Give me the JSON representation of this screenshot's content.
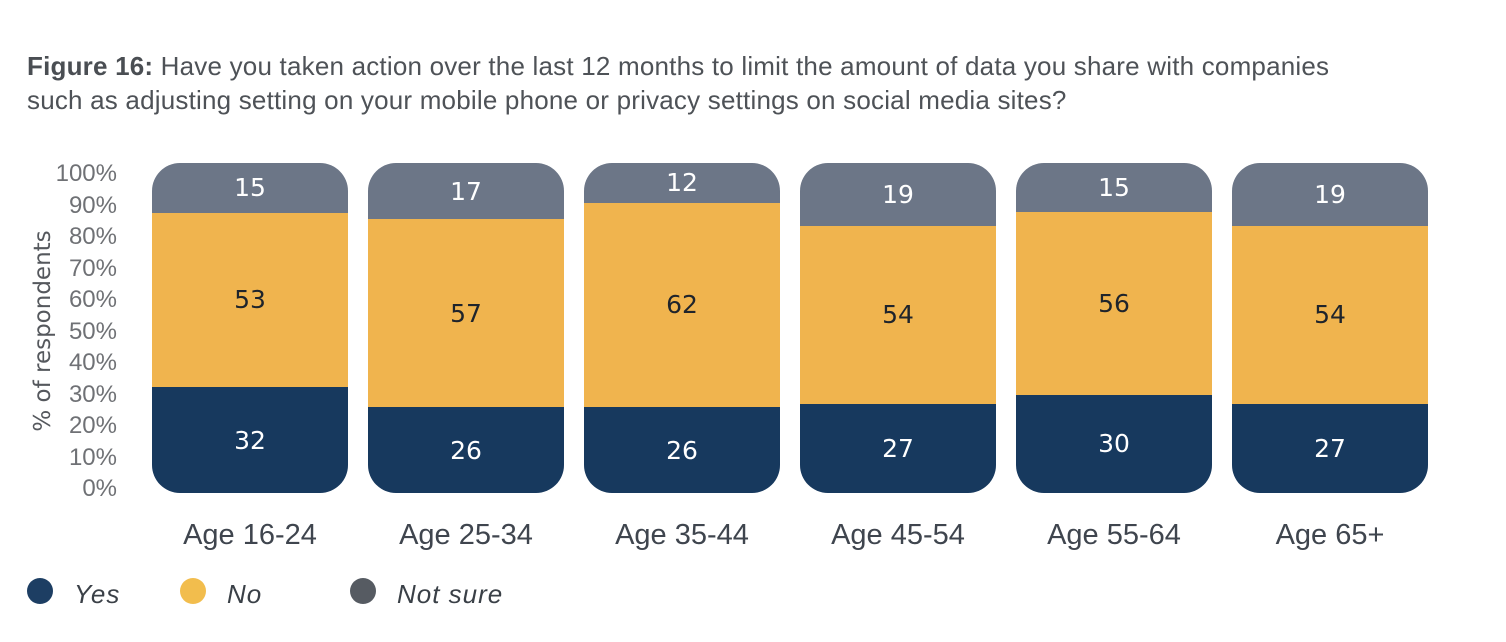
{
  "title": {
    "prefix": "Figure 16:",
    "text": " Have you taken action over the last 12 months to limit the amount of data you share with companies such as adjusting setting on your mobile phone or privacy settings on social media sites?"
  },
  "y_axis": {
    "label": "% of respondents",
    "ticks": [
      "100%",
      "90%",
      "80%",
      "70%",
      "60%",
      "50%",
      "40%",
      "30%",
      "20%",
      "10%",
      "0%"
    ]
  },
  "chart_data": {
    "type": "bar",
    "stacked": true,
    "percent_stacked": true,
    "title": "Figure 16: Have you taken action over the last 12 months to limit the amount of data you share with companies such as adjusting setting on your mobile phone or privacy settings on social media sites?",
    "categories": [
      "Age 16-24",
      "Age 25-34",
      "Age 35-44",
      "Age 45-54",
      "Age 55-64",
      "Age 65+"
    ],
    "series": [
      {
        "name": "Yes",
        "color": "#17395e",
        "label_color": "#ffffff",
        "values": [
          32,
          26,
          26,
          27,
          30,
          27
        ]
      },
      {
        "name": "No",
        "color": "#f0b44e",
        "label_color": "#1f242b",
        "values": [
          53,
          57,
          62,
          54,
          56,
          54
        ]
      },
      {
        "name": "Not sure",
        "color": "#6c7687",
        "label_color": "#ffffff",
        "values": [
          15,
          17,
          12,
          19,
          15,
          19
        ]
      }
    ],
    "xlabel": "",
    "ylabel": "% of respondents",
    "ylim": [
      0,
      100
    ],
    "grid": false,
    "legend_position": "bottom-left"
  },
  "legend": {
    "items": [
      {
        "label": "Yes",
        "color": "#1d3e63"
      },
      {
        "label": "No",
        "color": "#f2bd4d"
      },
      {
        "label": "Not sure",
        "color": "#565b62"
      }
    ]
  }
}
